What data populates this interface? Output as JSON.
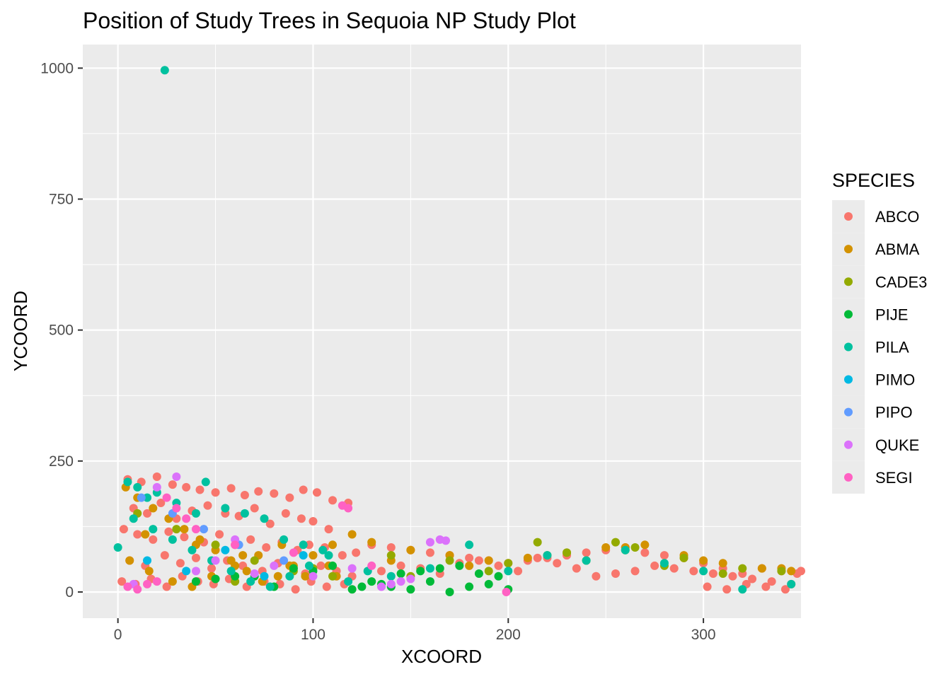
{
  "chart_data": {
    "type": "scatter",
    "title": "Position of Study Trees in Sequoia NP Study Plot",
    "xlabel": "XCOORD",
    "ylabel": "YCOORD",
    "xlim": [
      -18,
      350
    ],
    "ylim": [
      -50,
      1045
    ],
    "x_ticks": [
      0,
      100,
      200,
      300
    ],
    "x_tick_labels": [
      "0",
      "100",
      "200",
      "300"
    ],
    "y_ticks": [
      0,
      250,
      500,
      750,
      1000
    ],
    "y_tick_labels": [
      "0",
      "250",
      "500",
      "750",
      "1000"
    ],
    "grid": true,
    "legend": {
      "title": "SPECIES",
      "placement": "right",
      "entries": [
        "ABCO",
        "ABMA",
        "CADE3",
        "PIJE",
        "PILA",
        "PIMO",
        "PIPO",
        "QUKE",
        "SEGI"
      ]
    },
    "colors": {
      "ABCO": "#F8766D",
      "ABMA": "#D39200",
      "CADE3": "#93AA00",
      "PIJE": "#00BA38",
      "PILA": "#00C19F",
      "PIMO": "#00B9E3",
      "PIPO": "#619CFF",
      "QUKE": "#DB72FB",
      "SEGI": "#FF61C3"
    },
    "panel_background": "#EBEBEB",
    "grid_color": "#FFFFFF",
    "series": [
      {
        "name": "ABCO",
        "x": [
          5,
          12,
          20,
          28,
          35,
          42,
          50,
          58,
          65,
          72,
          80,
          88,
          95,
          102,
          110,
          118,
          8,
          15,
          22,
          30,
          38,
          46,
          55,
          62,
          70,
          78,
          86,
          94,
          100,
          108,
          3,
          10,
          18,
          26,
          34,
          44,
          52,
          60,
          68,
          76,
          84,
          92,
          98,
          106,
          115,
          122,
          6,
          14,
          24,
          32,
          40,
          48,
          56,
          64,
          74,
          82,
          90,
          96,
          104,
          112,
          120,
          2,
          9,
          17,
          25,
          33,
          41,
          49,
          57,
          66,
          75,
          83,
          91,
          99,
          107,
          116,
          130,
          140,
          150,
          160,
          170,
          180,
          190,
          200,
          210,
          220,
          230,
          240,
          250,
          260,
          135,
          145,
          155,
          165,
          175,
          185,
          195,
          205,
          215,
          225,
          235,
          245,
          255,
          265,
          270,
          280,
          290,
          300,
          310,
          320,
          330,
          340,
          348,
          275,
          285,
          295,
          305,
          315,
          325,
          335,
          345,
          302,
          312,
          322,
          332,
          342,
          350
        ],
        "y": [
          215,
          210,
          220,
          205,
          200,
          195,
          190,
          198,
          185,
          192,
          188,
          180,
          195,
          190,
          175,
          170,
          160,
          150,
          170,
          140,
          155,
          165,
          150,
          145,
          160,
          130,
          150,
          140,
          135,
          120,
          120,
          110,
          100,
          115,
          105,
          95,
          110,
          90,
          100,
          85,
          95,
          80,
          90,
          85,
          70,
          75,
          60,
          50,
          70,
          55,
          65,
          45,
          60,
          50,
          40,
          55,
          45,
          35,
          50,
          40,
          30,
          20,
          15,
          25,
          10,
          30,
          20,
          15,
          25,
          10,
          20,
          15,
          5,
          20,
          10,
          15,
          90,
          85,
          80,
          75,
          70,
          65,
          60,
          55,
          60,
          65,
          70,
          75,
          80,
          85,
          40,
          50,
          45,
          35,
          55,
          60,
          50,
          40,
          65,
          55,
          45,
          30,
          35,
          40,
          75,
          70,
          65,
          55,
          45,
          35,
          45,
          40,
          35,
          50,
          45,
          40,
          35,
          30,
          25,
          20,
          15,
          10,
          5,
          15,
          10,
          5,
          40
        ]
      },
      {
        "name": "ABMA",
        "x": [
          4,
          10,
          18,
          26,
          34,
          42,
          50,
          58,
          66,
          74,
          82,
          90,
          100,
          110,
          120,
          6,
          16,
          28,
          38,
          48,
          60,
          72,
          84,
          96,
          108,
          130,
          150,
          170,
          190,
          210,
          230,
          250,
          270,
          290,
          310,
          330,
          345,
          14,
          40,
          64,
          88,
          112,
          140,
          180,
          220,
          260,
          300,
          340
        ],
        "y": [
          200,
          180,
          160,
          140,
          120,
          100,
          80,
          60,
          40,
          20,
          30,
          50,
          70,
          90,
          110,
          60,
          40,
          20,
          10,
          30,
          50,
          70,
          90,
          30,
          50,
          95,
          80,
          70,
          60,
          65,
          75,
          85,
          90,
          70,
          55,
          45,
          40,
          110,
          90,
          70,
          50,
          30,
          60,
          50,
          70,
          85,
          60,
          45
        ]
      },
      {
        "name": "CADE3",
        "x": [
          10,
          30,
          50,
          70,
          90,
          110,
          140,
          170,
          200,
          230,
          260,
          290,
          320,
          60,
          100,
          150,
          190,
          240,
          280,
          310,
          340,
          265,
          255,
          215
        ],
        "y": [
          150,
          120,
          90,
          60,
          40,
          30,
          70,
          60,
          55,
          75,
          80,
          65,
          45,
          20,
          45,
          30,
          40,
          60,
          50,
          35,
          40,
          85,
          95,
          95
        ]
      },
      {
        "name": "PIJE",
        "x": [
          40,
          60,
          80,
          100,
          120,
          130,
          140,
          150,
          160,
          170,
          180,
          190,
          200,
          145,
          155,
          165,
          175,
          185,
          195,
          125,
          135,
          110,
          90,
          70,
          50
        ],
        "y": [
          20,
          30,
          10,
          40,
          5,
          20,
          10,
          5,
          20,
          0,
          10,
          15,
          5,
          35,
          40,
          45,
          50,
          35,
          30,
          10,
          15,
          50,
          45,
          30,
          25
        ]
      },
      {
        "name": "PILA",
        "x": [
          24,
          5,
          10,
          15,
          20,
          30,
          40,
          45,
          55,
          65,
          75,
          85,
          95,
          105,
          0,
          8,
          18,
          28,
          38,
          48,
          58,
          68,
          78,
          88,
          98,
          108,
          118,
          128,
          140,
          160,
          180,
          200,
          220,
          240,
          260,
          280,
          300,
          320,
          345
        ],
        "y": [
          996,
          210,
          200,
          180,
          190,
          170,
          150,
          210,
          160,
          150,
          140,
          100,
          90,
          80,
          85,
          140,
          120,
          100,
          80,
          60,
          40,
          20,
          10,
          30,
          50,
          70,
          20,
          40,
          30,
          45,
          90,
          40,
          70,
          60,
          80,
          55,
          40,
          5,
          15
        ]
      },
      {
        "name": "PIMO",
        "x": [
          15,
          35,
          55,
          75,
          95
        ],
        "y": [
          60,
          40,
          80,
          30,
          70
        ]
      },
      {
        "name": "PIPO",
        "x": [
          12,
          28,
          44,
          62,
          85
        ],
        "y": [
          180,
          150,
          120,
          90,
          60
        ]
      },
      {
        "name": "QUKE",
        "x": [
          30,
          20,
          8,
          40,
          60,
          80,
          100,
          120,
          140,
          150,
          160,
          165,
          168,
          145,
          135,
          50,
          70
        ],
        "y": [
          220,
          200,
          15,
          40,
          100,
          50,
          30,
          45,
          15,
          25,
          95,
          100,
          98,
          20,
          10,
          60,
          35
        ]
      },
      {
        "name": "SEGI",
        "x": [
          5,
          10,
          15,
          20,
          25,
          30,
          35,
          40,
          115,
          118,
          199,
          60,
          90,
          130
        ],
        "y": [
          10,
          5,
          15,
          20,
          180,
          160,
          140,
          120,
          165,
          160,
          0,
          90,
          75,
          50
        ]
      }
    ]
  }
}
